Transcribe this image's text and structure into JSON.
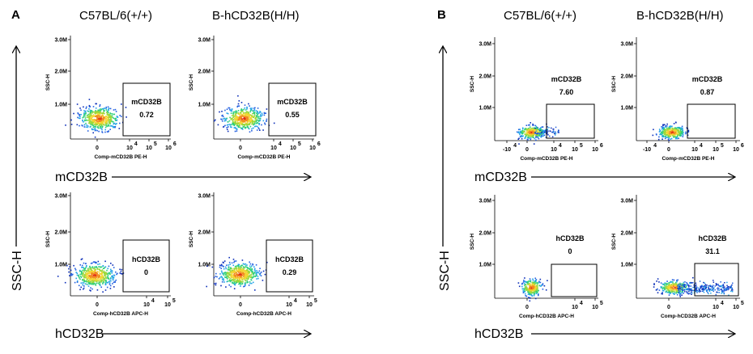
{
  "panels": [
    {
      "letter": "A",
      "columns": [
        "C57BL/6(+/+)",
        "B-hCD32B(H/H)"
      ],
      "row_labels": [
        "mCD32B",
        "hCD32B"
      ],
      "y_label": "SSC-H"
    },
    {
      "letter": "B",
      "columns": [
        "C57BL/6(+/+)",
        "B-hCD32B(H/H)"
      ],
      "row_labels": [
        "mCD32B",
        "hCD32B"
      ],
      "y_label": "SSC-H"
    }
  ],
  "chart_data": [
    {
      "type": "scatter",
      "panel": "A",
      "column": "C57BL/6(+/+)",
      "gate": "mCD32B",
      "value": "0.72",
      "xlabel": "Comp-mCD32B PE-H",
      "ylabel": "SSC-H",
      "yticks": [
        "3.0M",
        "2.0M",
        "1.0M"
      ],
      "xticks": [
        "0",
        "10",
        "10",
        "10"
      ],
      "xtick_exps": [
        "",
        "4",
        "5",
        "6"
      ],
      "ylim": [
        0,
        3000000
      ]
    },
    {
      "type": "scatter",
      "panel": "A",
      "column": "B-hCD32B(H/H)",
      "gate": "mCD32B",
      "value": "0.55",
      "xlabel": "Comp-mCD32B PE-H",
      "ylabel": "SSC-H",
      "yticks": [
        "3.0M",
        "2.0M",
        "1.0M"
      ],
      "xticks": [
        "0",
        "10",
        "10",
        "10"
      ],
      "xtick_exps": [
        "",
        "4",
        "5",
        "6"
      ],
      "ylim": [
        0,
        3000000
      ]
    },
    {
      "type": "scatter",
      "panel": "A",
      "column": "C57BL/6(+/+)",
      "gate": "hCD32B",
      "value": "0",
      "xlabel": "Comp-hCD32B APC-H",
      "ylabel": "SSC-H",
      "yticks": [
        "3.0M",
        "2.0M",
        "1.0M"
      ],
      "xticks": [
        "0",
        "10",
        "10"
      ],
      "xtick_exps": [
        "",
        "4",
        "5"
      ],
      "ylim": [
        0,
        3000000
      ]
    },
    {
      "type": "scatter",
      "panel": "A",
      "column": "B-hCD32B(H/H)",
      "gate": "hCD32B",
      "value": "0.29",
      "xlabel": "Comp-hCD32B APC-H",
      "ylabel": "SSC-H",
      "yticks": [
        "3.0M",
        "2.0M",
        "1.0M"
      ],
      "xticks": [
        "0",
        "10",
        "10"
      ],
      "xtick_exps": [
        "",
        "4",
        "5"
      ],
      "ylim": [
        0,
        3000000
      ]
    },
    {
      "type": "scatter",
      "panel": "B",
      "column": "C57BL/6(+/+)",
      "gate": "mCD32B",
      "value": "7.60",
      "xlabel": "Comp-mCD32B PE-H",
      "ylabel": "SSC-H",
      "yticks": [
        "3.0M",
        "2.0M",
        "1.0M"
      ],
      "xticks": [
        "-10",
        "0",
        "10",
        "10",
        "10"
      ],
      "xtick_exps": [
        "4",
        "",
        "4",
        "5",
        "6"
      ],
      "ylim": [
        0,
        3000000
      ]
    },
    {
      "type": "scatter",
      "panel": "B",
      "column": "B-hCD32B(H/H)",
      "gate": "mCD32B",
      "value": "0.87",
      "xlabel": "Comp-mCD32B PE-H",
      "ylabel": "SSC-H",
      "yticks": [
        "3.0M",
        "2.0M",
        "1.0M"
      ],
      "xticks": [
        "-10",
        "0",
        "10",
        "10",
        "10"
      ],
      "xtick_exps": [
        "4",
        "",
        "4",
        "5",
        "6"
      ],
      "ylim": [
        0,
        3000000
      ]
    },
    {
      "type": "scatter",
      "panel": "B",
      "column": "C57BL/6(+/+)",
      "gate": "hCD32B",
      "value": "0",
      "xlabel": "Comp-hCD32B APC-H",
      "ylabel": "SSC-H",
      "yticks": [
        "3.0M",
        "2.0M",
        "1.0M"
      ],
      "xticks": [
        "0",
        "10",
        "10"
      ],
      "xtick_exps": [
        "",
        "4",
        "5"
      ],
      "ylim": [
        0,
        3000000
      ]
    },
    {
      "type": "scatter",
      "panel": "B",
      "column": "B-hCD32B(H/H)",
      "gate": "hCD32B",
      "value": "31.1",
      "xlabel": "Comp-hCD32B APC-H",
      "ylabel": "SSC-H",
      "yticks": [
        "3.0M",
        "2.0M",
        "1.0M"
      ],
      "xticks": [
        "0",
        "10",
        "10"
      ],
      "xtick_exps": [
        "",
        "4",
        "5"
      ],
      "ylim": [
        0,
        3000000
      ]
    }
  ]
}
